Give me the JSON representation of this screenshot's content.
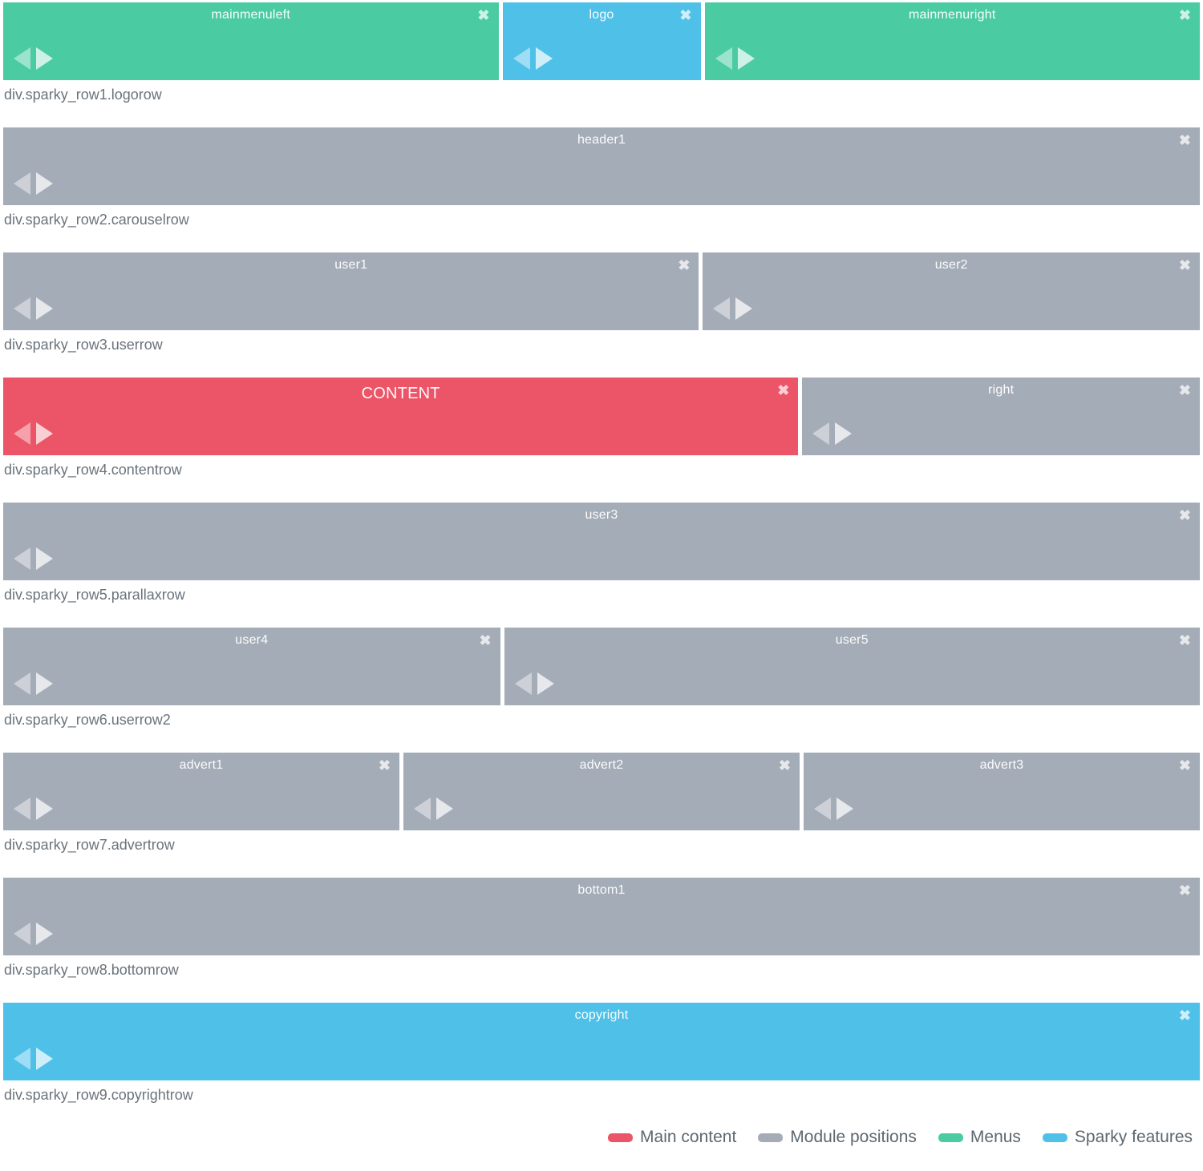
{
  "colors": {
    "main_content": "#ec5467",
    "module_positions": "#a4acb7",
    "menus": "#4bcba2",
    "sparky_features": "#4fc1e9",
    "row_label_text": "#6a737c",
    "block_title_text": "#ffffff",
    "legend_text": "#5d6770"
  },
  "icons": {
    "close_glyph": "✖",
    "move_left": "left-arrow-triangle",
    "move_right": "right-arrow-triangle"
  },
  "rows": [
    {
      "label": "div.sparky_row1.logorow",
      "blocks": [
        {
          "title": "mainmenuleft",
          "type": "menus",
          "span": 5
        },
        {
          "title": "logo",
          "type": "sparky_features",
          "span": 2
        },
        {
          "title": "mainmenuright",
          "type": "menus",
          "span": 5
        }
      ]
    },
    {
      "label": "div.sparky_row2.carouselrow",
      "blocks": [
        {
          "title": "header1",
          "type": "module_positions",
          "span": 12
        }
      ]
    },
    {
      "label": "div.sparky_row3.userrow",
      "blocks": [
        {
          "title": "user1",
          "type": "module_positions",
          "span": 7
        },
        {
          "title": "user2",
          "type": "module_positions",
          "span": 5
        }
      ]
    },
    {
      "label": "div.sparky_row4.contentrow",
      "blocks": [
        {
          "title": "CONTENT",
          "type": "main_content",
          "span": 8,
          "large": true
        },
        {
          "title": "right",
          "type": "module_positions",
          "span": 4
        }
      ]
    },
    {
      "label": "div.sparky_row5.parallaxrow",
      "blocks": [
        {
          "title": "user3",
          "type": "module_positions",
          "span": 12
        }
      ]
    },
    {
      "label": "div.sparky_row6.userrow2",
      "blocks": [
        {
          "title": "user4",
          "type": "module_positions",
          "span": 5
        },
        {
          "title": "user5",
          "type": "module_positions",
          "span": 7
        }
      ]
    },
    {
      "label": "div.sparky_row7.advertrow",
      "blocks": [
        {
          "title": "advert1",
          "type": "module_positions",
          "span": 4
        },
        {
          "title": "advert2",
          "type": "module_positions",
          "span": 4
        },
        {
          "title": "advert3",
          "type": "module_positions",
          "span": 4
        }
      ]
    },
    {
      "label": "div.sparky_row8.bottomrow",
      "blocks": [
        {
          "title": "bottom1",
          "type": "module_positions",
          "span": 12
        }
      ]
    },
    {
      "label": "div.sparky_row9.copyrightrow",
      "blocks": [
        {
          "title": "copyright",
          "type": "sparky_features",
          "span": 12
        }
      ]
    }
  ],
  "legend": [
    {
      "label": "Main content",
      "color_key": "main_content"
    },
    {
      "label": "Module positions",
      "color_key": "module_positions"
    },
    {
      "label": "Menus",
      "color_key": "menus"
    },
    {
      "label": "Sparky features",
      "color_key": "sparky_features"
    }
  ]
}
